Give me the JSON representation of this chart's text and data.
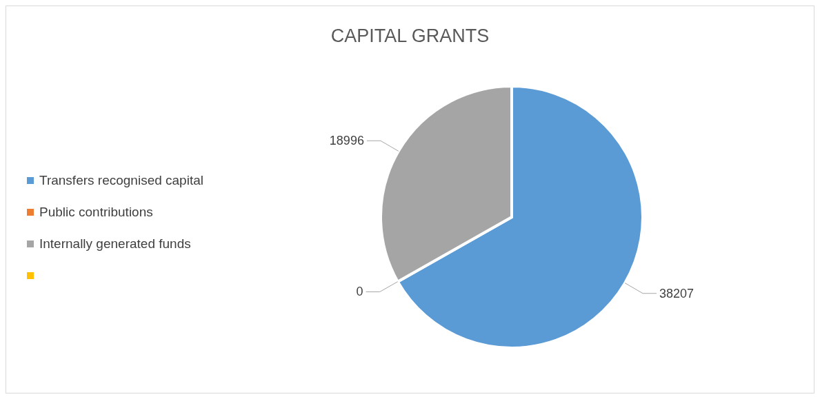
{
  "chart_data": {
    "type": "pie",
    "title": "CAPITAL GRANTS",
    "categories": [
      "Transfers recognised capital",
      "Public contributions",
      "Internally generated funds",
      null
    ],
    "values": [
      38207,
      0,
      18996,
      null
    ],
    "value_labels": [
      "38207",
      "0",
      "18996",
      null
    ],
    "colors": [
      "#5b9bd5",
      "#ed7d31",
      "#a5a5a5",
      "#ffc000"
    ],
    "legend": "left"
  }
}
